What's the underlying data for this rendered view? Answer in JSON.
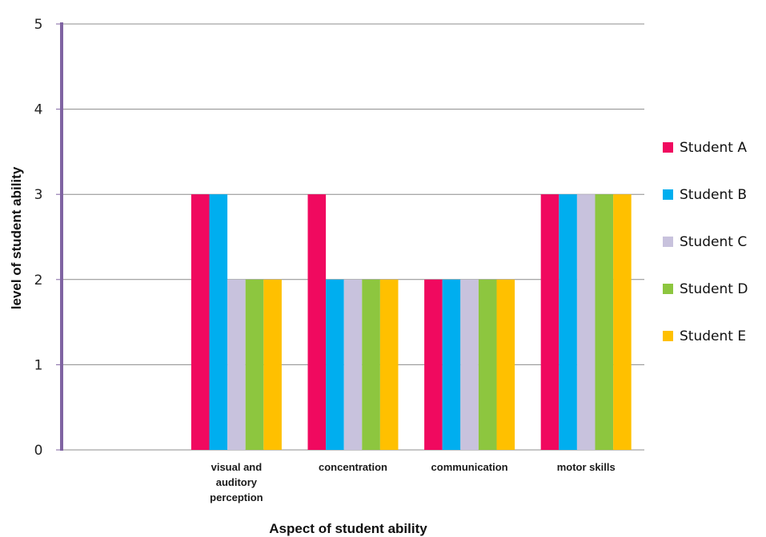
{
  "chart_data": {
    "type": "bar",
    "title": "",
    "xlabel": "Aspect of student ability",
    "ylabel": "level of student ability",
    "ylim": [
      0,
      5
    ],
    "yticks": [
      0,
      1,
      2,
      3,
      4,
      5
    ],
    "grid": true,
    "legend_position": "right",
    "categories": [
      [
        "",
        ""
      ],
      [
        "visual and",
        "auditory",
        "perception"
      ],
      [
        "concentration"
      ],
      [
        "communication"
      ],
      [
        "motor skills"
      ]
    ],
    "series": [
      {
        "name": "Student A",
        "color": "#f0095f",
        "values": [
          null,
          3,
          3,
          2,
          3
        ]
      },
      {
        "name": "Student B",
        "color": "#00aeef",
        "values": [
          null,
          3,
          2,
          2,
          3
        ]
      },
      {
        "name": "Student C",
        "color": "#c8c2dd",
        "values": [
          null,
          2,
          2,
          2,
          3
        ]
      },
      {
        "name": "Student D",
        "color": "#8dc63f",
        "values": [
          null,
          2,
          2,
          2,
          3
        ]
      },
      {
        "name": "Student E",
        "color": "#ffc000",
        "values": [
          null,
          2,
          2,
          2,
          3
        ]
      }
    ],
    "axis_color": "#8064a2",
    "grid_color": "#8c8c8c"
  }
}
